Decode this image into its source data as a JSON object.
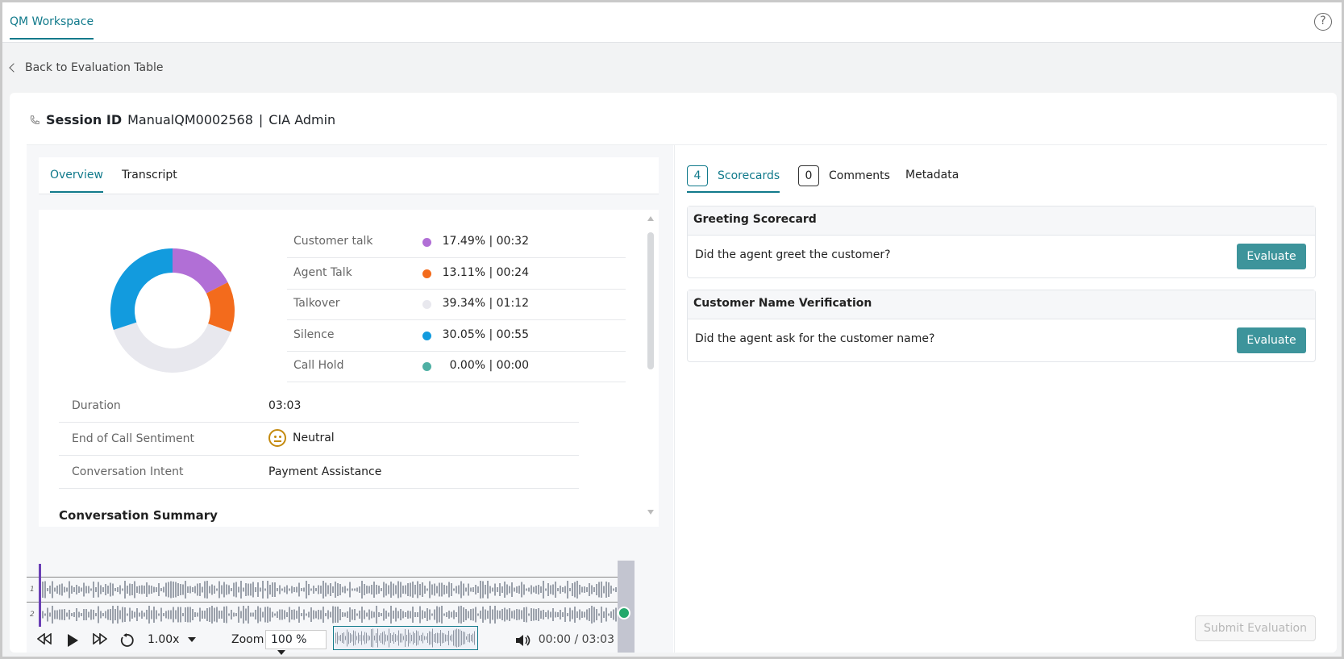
{
  "topbar": {
    "tab": "QM Workspace",
    "help_glyph": "?"
  },
  "back": {
    "label": "Back to Evaluation Table"
  },
  "session": {
    "label": "Session ID",
    "id": "ManualQM0002568",
    "separator": "|",
    "user": "CIA Admin"
  },
  "left_tabs": [
    "Overview",
    "Transcript"
  ],
  "talk_stats": [
    {
      "label": "Customer talk",
      "value": "17.49% | 00:32",
      "color": "#b16fd6",
      "pct": 17.49
    },
    {
      "label": "Agent Talk",
      "value": "13.11% | 00:24",
      "color": "#f36b1c",
      "pct": 13.11
    },
    {
      "label": "Talkover",
      "value": "39.34% | 01:12",
      "color": "#e8e8ee",
      "pct": 39.34
    },
    {
      "label": "Silence",
      "value": "30.05% | 00:55",
      "color": "#129bde",
      "pct": 30.05
    },
    {
      "label": "Call Hold",
      "value": "0.00% | 00:00",
      "color": "#4fb0a4",
      "pct": 0
    }
  ],
  "info": [
    {
      "label": "Duration",
      "value": "03:03"
    },
    {
      "label": "End of Call Sentiment",
      "value": "Neutral"
    },
    {
      "label": "Conversation Intent",
      "value": "Payment Assistance"
    }
  ],
  "summary_title": "Conversation Summary",
  "player": {
    "channels": [
      "1",
      "2"
    ],
    "speed": "1.00x",
    "zoom_label": "Zoom",
    "zoom_value": "100 %",
    "time": "00:00 / 03:03"
  },
  "right_tabs": [
    {
      "count": "4",
      "label": "Scorecards"
    },
    {
      "count": "0",
      "label": "Comments"
    },
    {
      "count": "",
      "label": "Metadata"
    }
  ],
  "scorecards": [
    {
      "title": "Greeting Scorecard",
      "question": "Did the agent greet the customer?",
      "button": "Evaluate"
    },
    {
      "title": "Customer Name Verification",
      "question": "Did the agent ask for the customer name?",
      "button": "Evaluate"
    }
  ],
  "submit": {
    "label": "Submit Evaluation"
  },
  "colors": {
    "accent": "#117a8b",
    "evaluate": "#3d949b",
    "neutral": "#c48a0e"
  }
}
